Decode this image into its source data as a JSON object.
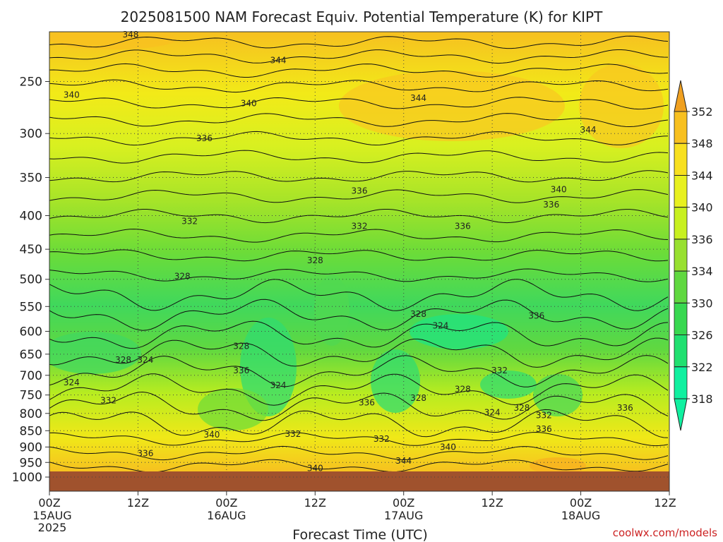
{
  "chart_data": {
    "type": "heatmap",
    "title": "2025081500 NAM Forecast Equiv. Potential Temperature (K) for KIPT",
    "xlabel": "Forecast Time (UTC)",
    "ylabel": "",
    "x_ticks": [
      {
        "hour": 0,
        "line1": "00Z",
        "line2": "15AUG",
        "line3": "2025"
      },
      {
        "hour": 12,
        "line1": "12Z",
        "line2": "",
        "line3": ""
      },
      {
        "hour": 24,
        "line1": "00Z",
        "line2": "16AUG",
        "line3": ""
      },
      {
        "hour": 36,
        "line1": "12Z",
        "line2": "",
        "line3": ""
      },
      {
        "hour": 48,
        "line1": "00Z",
        "line2": "17AUG",
        "line3": ""
      },
      {
        "hour": 60,
        "line1": "12Z",
        "line2": "",
        "line3": ""
      },
      {
        "hour": 72,
        "line1": "00Z",
        "line2": "18AUG",
        "line3": ""
      },
      {
        "hour": 84,
        "line1": "12Z",
        "line2": "",
        "line3": ""
      }
    ],
    "xlim": [
      0,
      84
    ],
    "y_ticks": [
      "250",
      "300",
      "350",
      "400",
      "450",
      "500",
      "550",
      "600",
      "650",
      "700",
      "750",
      "800",
      "850",
      "900",
      "950",
      "1000"
    ],
    "ylim": [
      1000,
      200
    ],
    "y_scale": "log",
    "colorbar": {
      "levels": [
        "352",
        "348",
        "344",
        "340",
        "336",
        "334",
        "330",
        "326",
        "322",
        "318"
      ],
      "colors": [
        "#f0a020",
        "#f8c020",
        "#f8e020",
        "#e8f020",
        "#c8f020",
        "#98e030",
        "#60d840",
        "#38d850",
        "#20e070",
        "#10f0a0"
      ]
    },
    "contour_labels": [
      {
        "text": "348",
        "hour": 11,
        "p": 212
      },
      {
        "text": "344",
        "hour": 31,
        "p": 232
      },
      {
        "text": "340",
        "hour": 3,
        "p": 262
      },
      {
        "text": "340",
        "hour": 27,
        "p": 270
      },
      {
        "text": "344",
        "hour": 50,
        "p": 265
      },
      {
        "text": "336",
        "hour": 21,
        "p": 305
      },
      {
        "text": "344",
        "hour": 73,
        "p": 296
      },
      {
        "text": "336",
        "hour": 42,
        "p": 367
      },
      {
        "text": "340",
        "hour": 69,
        "p": 365
      },
      {
        "text": "336",
        "hour": 68,
        "p": 385
      },
      {
        "text": "332",
        "hour": 19,
        "p": 408
      },
      {
        "text": "332",
        "hour": 42,
        "p": 415
      },
      {
        "text": "336",
        "hour": 56,
        "p": 415
      },
      {
        "text": "328",
        "hour": 36,
        "p": 468
      },
      {
        "text": "328",
        "hour": 18,
        "p": 495
      },
      {
        "text": "328",
        "hour": 50,
        "p": 565
      },
      {
        "text": "324",
        "hour": 53,
        "p": 588
      },
      {
        "text": "336",
        "hour": 66,
        "p": 568
      },
      {
        "text": "328",
        "hour": 26,
        "p": 632
      },
      {
        "text": "328",
        "hour": 10,
        "p": 663
      },
      {
        "text": "324",
        "hour": 13,
        "p": 663
      },
      {
        "text": "336",
        "hour": 26,
        "p": 688
      },
      {
        "text": "324",
        "hour": 3,
        "p": 718
      },
      {
        "text": "324",
        "hour": 31,
        "p": 725
      },
      {
        "text": "332",
        "hour": 61,
        "p": 688
      },
      {
        "text": "328",
        "hour": 56,
        "p": 735
      },
      {
        "text": "332",
        "hour": 8,
        "p": 765
      },
      {
        "text": "336",
        "hour": 43,
        "p": 770
      },
      {
        "text": "328",
        "hour": 50,
        "p": 758
      },
      {
        "text": "328",
        "hour": 64,
        "p": 785
      },
      {
        "text": "324",
        "hour": 60,
        "p": 797
      },
      {
        "text": "332",
        "hour": 67,
        "p": 805
      },
      {
        "text": "336",
        "hour": 78,
        "p": 785
      },
      {
        "text": "336",
        "hour": 67,
        "p": 845
      },
      {
        "text": "340",
        "hour": 22,
        "p": 862
      },
      {
        "text": "332",
        "hour": 33,
        "p": 860
      },
      {
        "text": "332",
        "hour": 45,
        "p": 875
      },
      {
        "text": "340",
        "hour": 54,
        "p": 900
      },
      {
        "text": "336",
        "hour": 13,
        "p": 920
      },
      {
        "text": "344",
        "hour": 48,
        "p": 945
      },
      {
        "text": "340",
        "hour": 36,
        "p": 970
      }
    ]
  },
  "credit": "coolwx.com/models"
}
